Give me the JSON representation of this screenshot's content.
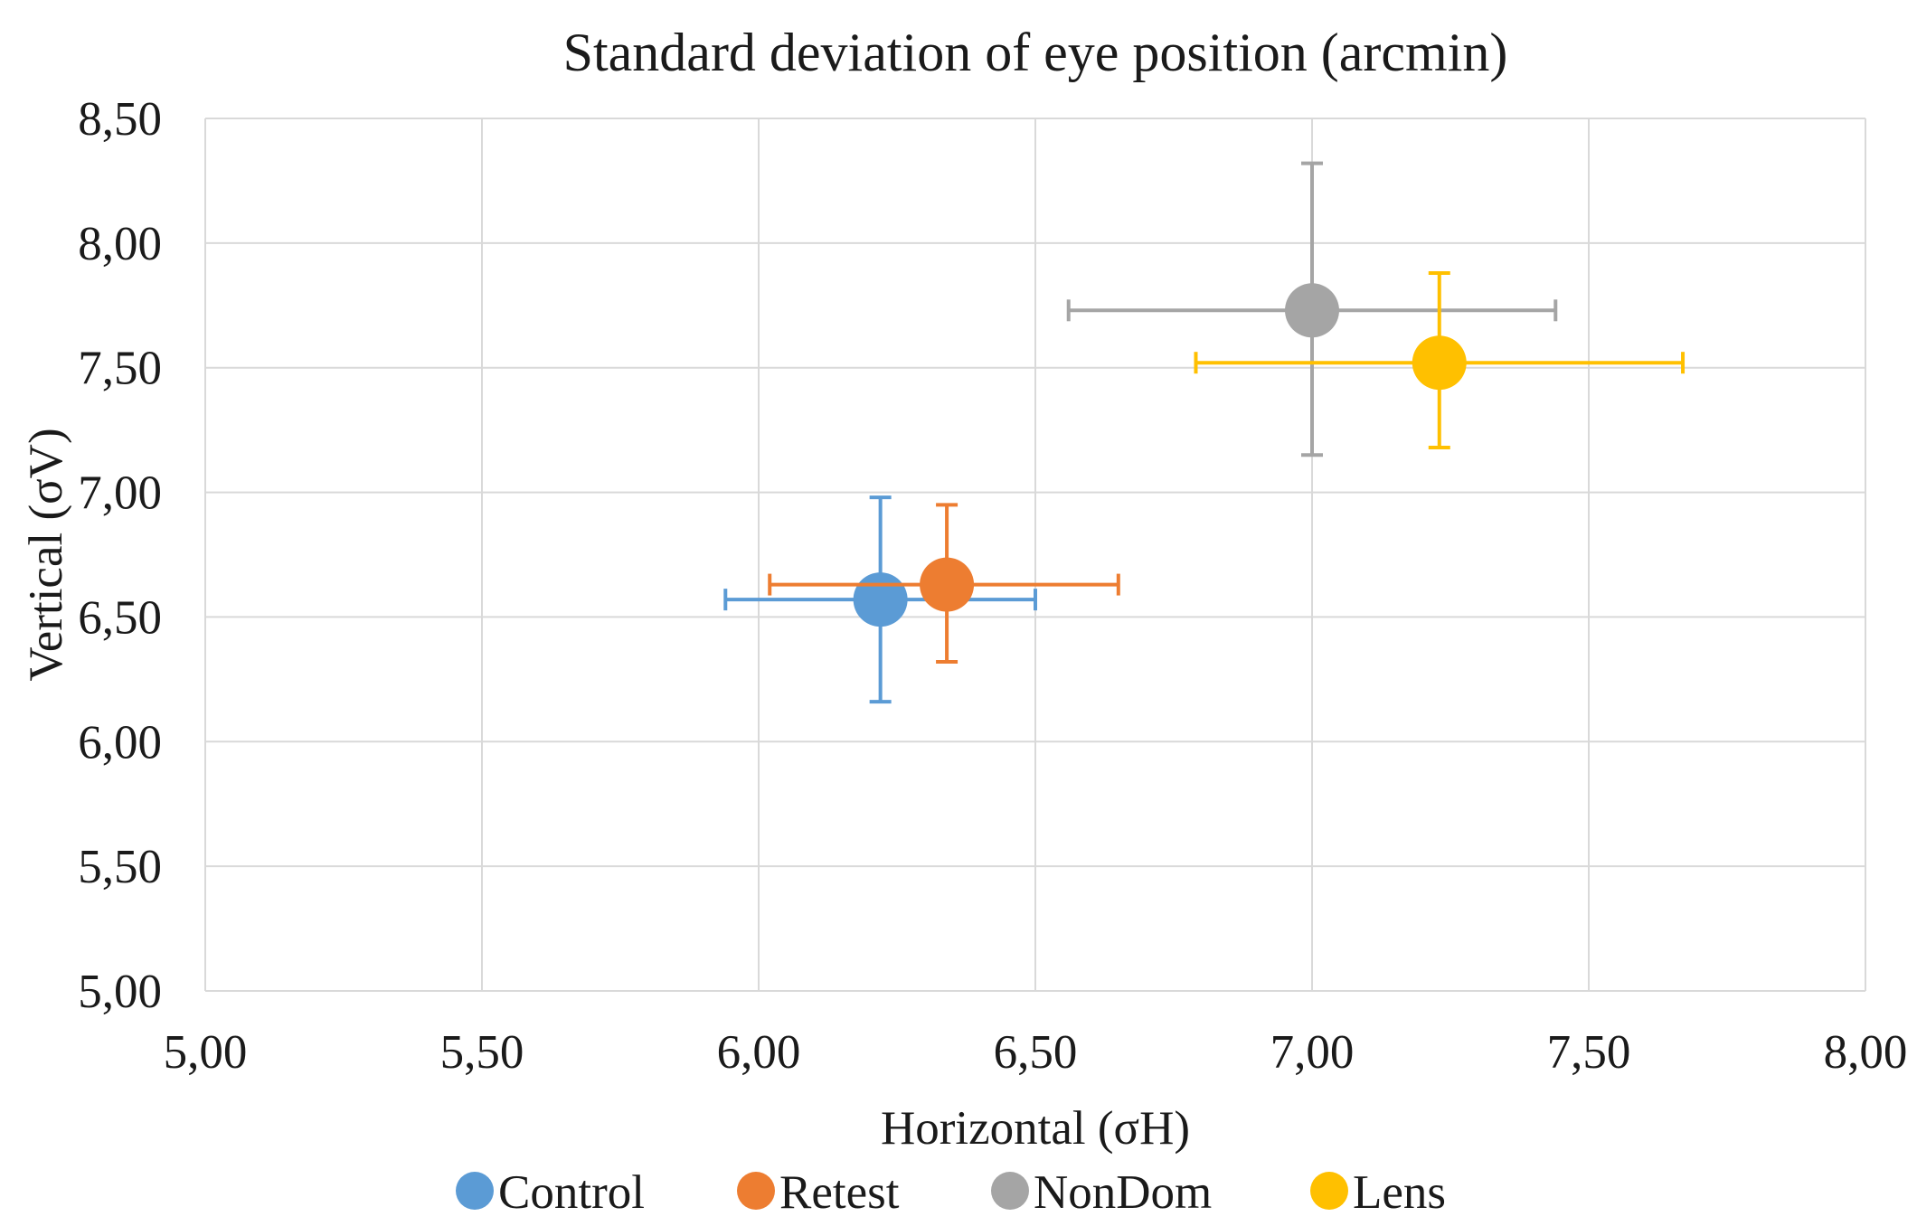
{
  "chart_data": {
    "type": "scatter",
    "title": "Standard deviation of eye position (arcmin)",
    "xlabel": "Horizontal (σH)",
    "ylabel": "Vertical (σV)",
    "xlim": [
      5.0,
      8.0
    ],
    "ylim": [
      5.0,
      8.5
    ],
    "x_ticks": [
      5.0,
      5.5,
      6.0,
      6.5,
      7.0,
      7.5,
      8.0
    ],
    "y_ticks": [
      5.0,
      5.5,
      6.0,
      6.5,
      7.0,
      7.5,
      8.0,
      8.5
    ],
    "x_tick_labels": [
      "5,00",
      "5,50",
      "6,00",
      "6,50",
      "7,00",
      "7,50",
      "8,00"
    ],
    "y_tick_labels": [
      "5,00",
      "5,50",
      "6,00",
      "6,50",
      "7,00",
      "7,50",
      "8,00",
      "8,50"
    ],
    "grid": true,
    "legend_position": "bottom",
    "series": [
      {
        "name": "Control",
        "color": "#5b9bd5",
        "x": 6.22,
        "y": 6.57,
        "x_err": [
          5.94,
          6.5
        ],
        "y_err": [
          6.16,
          6.98
        ]
      },
      {
        "name": "Retest",
        "color": "#ed7d31",
        "x": 6.34,
        "y": 6.63,
        "x_err": [
          6.02,
          6.65
        ],
        "y_err": [
          6.32,
          6.95
        ]
      },
      {
        "name": "NonDom",
        "color": "#a5a5a5",
        "x": 7.0,
        "y": 7.73,
        "x_err": [
          6.56,
          7.44
        ],
        "y_err": [
          7.15,
          8.32
        ]
      },
      {
        "name": "Lens",
        "color": "#ffc000",
        "x": 7.23,
        "y": 7.52,
        "x_err": [
          6.79,
          7.67
        ],
        "y_err": [
          7.18,
          7.88
        ]
      }
    ]
  }
}
